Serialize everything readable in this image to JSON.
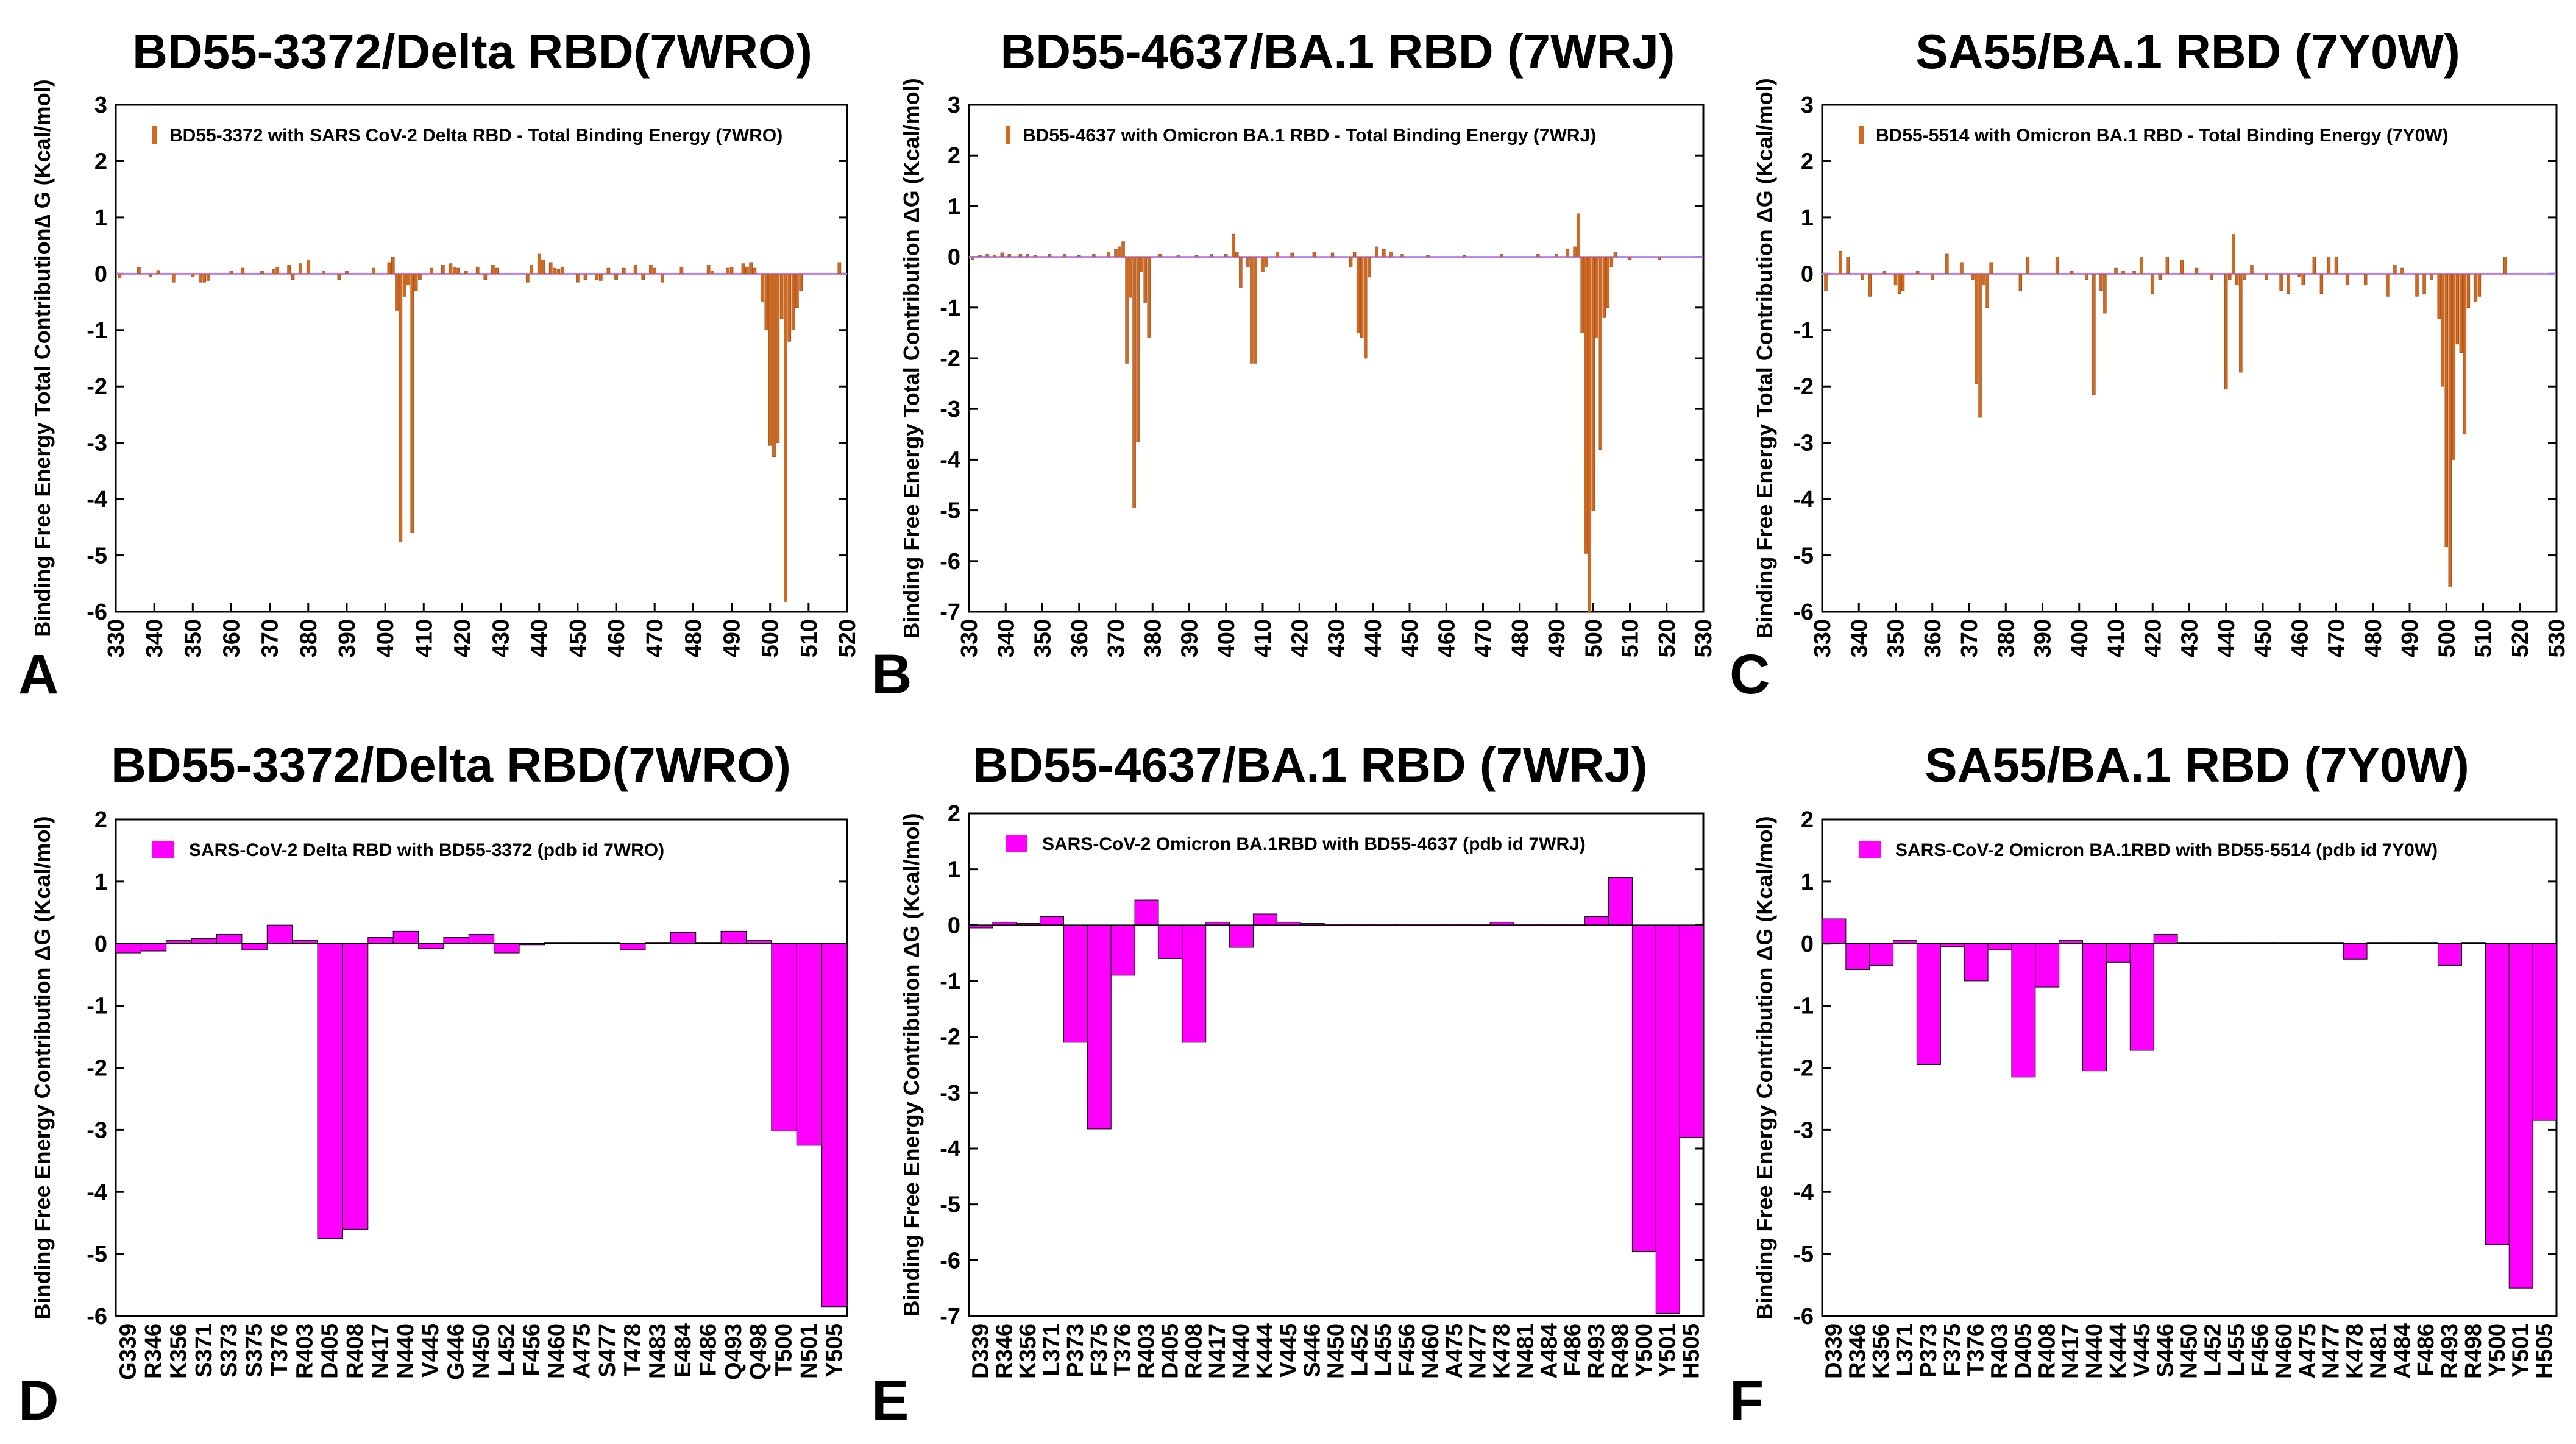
{
  "chart_data": [
    {
      "panel": "A",
      "type": "bar",
      "title": "BD55-3372/Delta RBD(7WRO)",
      "ylabel": "Binding Free Energy Total Contribution∆ G (Kcal/mol)",
      "xlabel": "",
      "legend": "BD55-3372 with SARS CoV-2 Delta RBD -  Total Binding Energy (7WRO)",
      "xlim": [
        330,
        520
      ],
      "ylim": [
        -6,
        3
      ],
      "xticks": [
        330,
        340,
        350,
        360,
        370,
        380,
        390,
        400,
        410,
        420,
        430,
        440,
        450,
        460,
        470,
        480,
        490,
        500,
        510,
        520
      ],
      "yticks": [
        3,
        2,
        1,
        0,
        -1,
        -2,
        -3,
        -4,
        -5,
        -6
      ],
      "color": "#d2691e",
      "points": [
        [
          331,
          -0.08
        ],
        [
          336,
          0.12
        ],
        [
          339,
          -0.05
        ],
        [
          341,
          0.06
        ],
        [
          345,
          -0.15
        ],
        [
          350,
          -0.05
        ],
        [
          352,
          -0.15
        ],
        [
          353,
          -0.15
        ],
        [
          354,
          -0.12
        ],
        [
          360,
          0.05
        ],
        [
          363,
          0.1
        ],
        [
          368,
          0.05
        ],
        [
          371,
          0.08
        ],
        [
          372,
          0.12
        ],
        [
          375,
          0.15
        ],
        [
          376,
          -0.1
        ],
        [
          378,
          0.18
        ],
        [
          380,
          0.25
        ],
        [
          384,
          0.05
        ],
        [
          388,
          -0.1
        ],
        [
          390,
          0.05
        ],
        [
          397,
          0.1
        ],
        [
          401,
          0.2
        ],
        [
          402,
          0.3
        ],
        [
          403,
          -0.65
        ],
        [
          404,
          -4.75
        ],
        [
          405,
          -0.4
        ],
        [
          406,
          -0.2
        ],
        [
          407,
          -4.6
        ],
        [
          408,
          -0.3
        ],
        [
          409,
          -0.1
        ],
        [
          412,
          0.1
        ],
        [
          415,
          0.15
        ],
        [
          417,
          0.18
        ],
        [
          418,
          0.12
        ],
        [
          419,
          0.1
        ],
        [
          421,
          0.05
        ],
        [
          424,
          0.12
        ],
        [
          426,
          -0.1
        ],
        [
          428,
          0.15
        ],
        [
          429,
          0.1
        ],
        [
          437,
          -0.15
        ],
        [
          438,
          0.15
        ],
        [
          440,
          0.35
        ],
        [
          441,
          0.25
        ],
        [
          443,
          0.2
        ],
        [
          444,
          0.1
        ],
        [
          445,
          0.08
        ],
        [
          446,
          0.12
        ],
        [
          450,
          -0.15
        ],
        [
          452,
          -0.1
        ],
        [
          455,
          -0.1
        ],
        [
          456,
          -0.12
        ],
        [
          458,
          0.1
        ],
        [
          460,
          -0.1
        ],
        [
          462,
          0.1
        ],
        [
          465,
          0.15
        ],
        [
          467,
          -0.1
        ],
        [
          469,
          0.15
        ],
        [
          470,
          0.1
        ],
        [
          472,
          -0.15
        ],
        [
          477,
          0.12
        ],
        [
          484,
          0.15
        ],
        [
          485,
          0.05
        ],
        [
          489,
          0.1
        ],
        [
          490,
          0.12
        ],
        [
          493,
          0.18
        ],
        [
          494,
          0.12
        ],
        [
          495,
          0.2
        ],
        [
          496,
          0.1
        ],
        [
          498,
          -0.5
        ],
        [
          499,
          -1.0
        ],
        [
          500,
          -3.05
        ],
        [
          501,
          -3.25
        ],
        [
          502,
          -3.0
        ],
        [
          503,
          -0.8
        ],
        [
          504,
          -5.82
        ],
        [
          505,
          -1.2
        ],
        [
          506,
          -1.0
        ],
        [
          507,
          -0.6
        ],
        [
          508,
          -0.3
        ],
        [
          518,
          0.2
        ]
      ]
    },
    {
      "panel": "B",
      "type": "bar",
      "title": "BD55-4637/BA.1 RBD  (7WRJ)",
      "ylabel": "Binding Free Energy Total Contribution ΔG (Kcal/mol)",
      "xlabel": "",
      "legend": "BD55-4637 with Omicron BA.1 RBD -  Total Binding Energy (7WRJ)",
      "xlim": [
        330,
        530
      ],
      "ylim": [
        -7,
        3
      ],
      "xticks": [
        330,
        340,
        350,
        360,
        370,
        380,
        390,
        400,
        410,
        420,
        430,
        440,
        450,
        460,
        470,
        480,
        490,
        500,
        510,
        520,
        530
      ],
      "yticks": [
        3,
        2,
        1,
        0,
        -1,
        -2,
        -3,
        -4,
        -5,
        -6,
        -7
      ],
      "color": "#d2691e",
      "points": [
        [
          331,
          -0.05
        ],
        [
          333,
          0.03
        ],
        [
          335,
          0.05
        ],
        [
          337,
          0.04
        ],
        [
          339,
          0.08
        ],
        [
          341,
          0.05
        ],
        [
          344,
          0.05
        ],
        [
          346,
          0.05
        ],
        [
          348,
          0.03
        ],
        [
          352,
          0.05
        ],
        [
          356,
          0.05
        ],
        [
          360,
          0.03
        ],
        [
          364,
          0.05
        ],
        [
          368,
          0.1
        ],
        [
          370,
          0.15
        ],
        [
          371,
          0.2
        ],
        [
          372,
          0.3
        ],
        [
          373,
          -2.1
        ],
        [
          374,
          -0.8
        ],
        [
          375,
          -4.95
        ],
        [
          376,
          -3.65
        ],
        [
          377,
          -0.3
        ],
        [
          378,
          -0.9
        ],
        [
          379,
          -1.6
        ],
        [
          382,
          0.05
        ],
        [
          387,
          0.04
        ],
        [
          392,
          0.03
        ],
        [
          396,
          0.05
        ],
        [
          400,
          0.05
        ],
        [
          402,
          0.45
        ],
        [
          403,
          0.1
        ],
        [
          404,
          -0.6
        ],
        [
          406,
          -0.2
        ],
        [
          407,
          -2.1
        ],
        [
          408,
          -2.1
        ],
        [
          410,
          -0.3
        ],
        [
          411,
          -0.2
        ],
        [
          414,
          0.1
        ],
        [
          418,
          0.08
        ],
        [
          424,
          0.1
        ],
        [
          429,
          0.08
        ],
        [
          434,
          -0.2
        ],
        [
          435,
          0.1
        ],
        [
          436,
          -1.5
        ],
        [
          437,
          -1.6
        ],
        [
          438,
          -2.0
        ],
        [
          439,
          -0.4
        ],
        [
          441,
          0.2
        ],
        [
          443,
          0.15
        ],
        [
          445,
          0.1
        ],
        [
          448,
          0.05
        ],
        [
          455,
          0.03
        ],
        [
          465,
          0.03
        ],
        [
          475,
          0.05
        ],
        [
          485,
          0.05
        ],
        [
          490,
          0.05
        ],
        [
          493,
          0.15
        ],
        [
          495,
          0.2
        ],
        [
          496,
          0.85
        ],
        [
          497,
          -1.5
        ],
        [
          498,
          -5.85
        ],
        [
          499,
          -7.0
        ],
        [
          500,
          -5.0
        ],
        [
          501,
          -1.6
        ],
        [
          502,
          -3.8
        ],
        [
          503,
          -1.2
        ],
        [
          504,
          -1.0
        ],
        [
          505,
          -0.2
        ],
        [
          506,
          0.1
        ],
        [
          510,
          -0.05
        ],
        [
          518,
          -0.05
        ]
      ]
    },
    {
      "panel": "C",
      "type": "bar",
      "title": "SA55/BA.1 RBD (7Y0W)",
      "ylabel": "Binding Free Energy Total Contribution ΔG (Kcal/mol)",
      "xlabel": "",
      "legend": "BD55-5514 with Omicron BA.1 RBD -  Total Binding Energy (7Y0W)",
      "xlim": [
        330,
        530
      ],
      "ylim": [
        -6,
        3
      ],
      "xticks": [
        330,
        340,
        350,
        360,
        370,
        380,
        390,
        400,
        410,
        420,
        430,
        440,
        450,
        460,
        470,
        480,
        490,
        500,
        510,
        520,
        530
      ],
      "yticks": [
        3,
        2,
        1,
        0,
        -1,
        -2,
        -3,
        -4,
        -5,
        -6
      ],
      "color": "#d2691e",
      "points": [
        [
          331,
          -0.3
        ],
        [
          335,
          0.4
        ],
        [
          337,
          0.3
        ],
        [
          341,
          -0.1
        ],
        [
          343,
          -0.4
        ],
        [
          347,
          0.05
        ],
        [
          350,
          -0.2
        ],
        [
          351,
          -0.35
        ],
        [
          352,
          -0.3
        ],
        [
          356,
          0.05
        ],
        [
          360,
          -0.1
        ],
        [
          364,
          0.35
        ],
        [
          368,
          0.2
        ],
        [
          371,
          -0.1
        ],
        [
          372,
          -1.95
        ],
        [
          373,
          -2.55
        ],
        [
          374,
          -0.2
        ],
        [
          375,
          -0.6
        ],
        [
          376,
          0.2
        ],
        [
          384,
          -0.3
        ],
        [
          386,
          0.3
        ],
        [
          394,
          0.3
        ],
        [
          398,
          0.05
        ],
        [
          402,
          -0.1
        ],
        [
          404,
          -2.15
        ],
        [
          406,
          -0.3
        ],
        [
          407,
          -0.7
        ],
        [
          410,
          0.1
        ],
        [
          412,
          0.05
        ],
        [
          415,
          0.05
        ],
        [
          417,
          0.3
        ],
        [
          420,
          -0.35
        ],
        [
          422,
          -0.1
        ],
        [
          424,
          0.3
        ],
        [
          428,
          0.25
        ],
        [
          432,
          0.1
        ],
        [
          436,
          -0.1
        ],
        [
          440,
          -2.05
        ],
        [
          441,
          -0.1
        ],
        [
          442,
          0.7
        ],
        [
          443,
          -0.2
        ],
        [
          444,
          -1.75
        ],
        [
          445,
          -0.1
        ],
        [
          447,
          0.15
        ],
        [
          451,
          -0.1
        ],
        [
          455,
          -0.3
        ],
        [
          457,
          -0.35
        ],
        [
          460,
          -0.05
        ],
        [
          461,
          -0.2
        ],
        [
          464,
          0.3
        ],
        [
          466,
          -0.35
        ],
        [
          468,
          0.3
        ],
        [
          470,
          0.3
        ],
        [
          473,
          -0.2
        ],
        [
          478,
          -0.2
        ],
        [
          484,
          -0.4
        ],
        [
          486,
          0.15
        ],
        [
          488,
          0.1
        ],
        [
          492,
          -0.4
        ],
        [
          494,
          -0.35
        ],
        [
          496,
          -0.1
        ],
        [
          498,
          -0.8
        ],
        [
          499,
          -2.0
        ],
        [
          500,
          -4.85
        ],
        [
          501,
          -5.55
        ],
        [
          502,
          -3.3
        ],
        [
          503,
          -1.25
        ],
        [
          504,
          -1.4
        ],
        [
          505,
          -2.85
        ],
        [
          506,
          -0.6
        ],
        [
          508,
          -0.5
        ],
        [
          509,
          -0.4
        ],
        [
          516,
          0.3
        ]
      ]
    },
    {
      "panel": "D",
      "type": "bar",
      "title": "BD55-3372/Delta RBD(7WRO)",
      "ylabel": "Binding Free Energy Contribution  ΔG (Kcal/mol)",
      "xlabel": "",
      "legend": "SARS-CoV-2 Delta RBD  with BD55-3372 (pdb id 7WRO)",
      "ylim": [
        -6,
        2
      ],
      "yticks": [
        2,
        1,
        0,
        -1,
        -2,
        -3,
        -4,
        -5,
        -6
      ],
      "color": "#ff00ff",
      "categories": [
        "G339",
        "R346",
        "K356",
        "S371",
        "S373",
        "S375",
        "T376",
        "R403",
        "D405",
        "R408",
        "N417",
        "N440",
        "V445",
        "G446",
        "N450",
        "L452",
        "F456",
        "N460",
        "A475",
        "S477",
        "T478",
        "N483",
        "E484",
        "F486",
        "Q493",
        "Q498",
        "T500",
        "N501",
        "Y505"
      ],
      "values": [
        -0.15,
        -0.12,
        0.05,
        0.08,
        0.15,
        -0.1,
        0.3,
        0.05,
        -4.75,
        -4.6,
        0.1,
        0.2,
        -0.08,
        0.1,
        0.15,
        -0.15,
        -0.02,
        0.02,
        0.02,
        0.02,
        -0.1,
        0.02,
        0.18,
        0.02,
        0.2,
        0.05,
        -3.02,
        -3.25,
        -5.85
      ]
    },
    {
      "panel": "E",
      "type": "bar",
      "title": "BD55-4637/BA.1 RBD  (7WRJ)",
      "ylabel": "Binding Free Energy Contribution  ΔG (Kcal/mol)",
      "xlabel": "",
      "legend": "SARS-CoV-2 Omicron BA.1RBD  with BD55-4637 (pdb id 7WRJ)",
      "ylim": [
        -7,
        2
      ],
      "yticks": [
        2,
        1,
        0,
        -1,
        -2,
        -3,
        -4,
        -5,
        -6,
        -7
      ],
      "color": "#ff00ff",
      "categories": [
        "D339",
        "R346",
        "K356",
        "L371",
        "P373",
        "F375",
        "T376",
        "R403",
        "D405",
        "R408",
        "N417",
        "N440",
        "K444",
        "V445",
        "S446",
        "N450",
        "L452",
        "L455",
        "F456",
        "N460",
        "A475",
        "N477",
        "K478",
        "N481",
        "A484",
        "F486",
        "R493",
        "R498",
        "Y500",
        "Y501",
        "H505"
      ],
      "values": [
        -0.05,
        0.05,
        0.03,
        0.15,
        -2.1,
        -3.65,
        -0.9,
        0.45,
        -0.6,
        -2.1,
        0.05,
        -0.4,
        0.2,
        0.05,
        0.03,
        0.02,
        0.02,
        0.02,
        0.02,
        0.02,
        0.02,
        0.02,
        0.05,
        0.02,
        0.02,
        0.02,
        0.15,
        0.85,
        -5.85,
        -6.95,
        -3.8
      ]
    },
    {
      "panel": "F",
      "type": "bar",
      "title": "SA55/BA.1 RBD (7Y0W)",
      "ylabel": "Binding Free Energy Contribution ΔG (Kcal/mol)",
      "xlabel": "",
      "legend": "SARS-CoV-2 Omicron BA.1RBD  with BD55-5514 (pdb id 7Y0W)",
      "ylim": [
        -6,
        2
      ],
      "yticks": [
        2,
        1,
        0,
        -1,
        -2,
        -3,
        -4,
        -5,
        -6
      ],
      "color": "#ff00ff",
      "categories": [
        "D339",
        "R346",
        "K356",
        "L371",
        "P373",
        "F375",
        "T376",
        "R403",
        "D405",
        "R408",
        "N417",
        "N440",
        "K444",
        "V445",
        "S446",
        "N450",
        "L452",
        "L455",
        "F456",
        "N460",
        "A475",
        "N477",
        "K478",
        "N481",
        "A484",
        "F486",
        "R493",
        "R498",
        "Y500",
        "Y501",
        "H505"
      ],
      "values": [
        0.4,
        -0.42,
        -0.35,
        0.05,
        -1.95,
        -0.05,
        -0.6,
        -0.1,
        -2.15,
        -0.7,
        0.05,
        -2.05,
        -0.3,
        -1.72,
        0.15,
        0.02,
        0.02,
        0.02,
        0.02,
        0.02,
        0.02,
        0.02,
        -0.25,
        0.02,
        0.02,
        0.02,
        -0.35,
        0.02,
        -4.85,
        -5.55,
        -2.85
      ]
    }
  ]
}
